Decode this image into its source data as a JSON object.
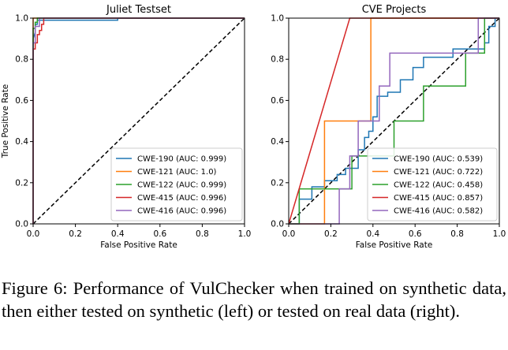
{
  "chart_data": [
    {
      "type": "line",
      "title": "Juliet Testset",
      "xlabel": "False Positive Rate",
      "ylabel": "True Positive Rate",
      "xlim": [
        0,
        1
      ],
      "ylim": [
        0,
        1
      ],
      "xticks": [
        "0.0",
        "0.2",
        "0.4",
        "0.6",
        "0.8",
        "1.0"
      ],
      "yticks": [
        "0.0",
        "0.2",
        "0.4",
        "0.6",
        "0.8",
        "1.0"
      ],
      "legend_position": "lower-right",
      "grid": false,
      "diagonal": true,
      "series": [
        {
          "name": "CWE-190 (AUC: 0.999)",
          "color": "#1f77b4",
          "x": [
            0,
            0,
            0.01,
            0.01,
            0.02,
            0.02,
            0.4,
            0.4,
            1.0
          ],
          "y": [
            0,
            0.9,
            0.93,
            0.97,
            0.97,
            0.99,
            0.99,
            1.0,
            1.0
          ]
        },
        {
          "name": "CWE-121 (AUC: 1.0)",
          "color": "#ff7f0e",
          "x": [
            0,
            0,
            1.0
          ],
          "y": [
            0,
            1.0,
            1.0
          ]
        },
        {
          "name": "CWE-122 (AUC: 0.999)",
          "color": "#2ca02c",
          "x": [
            0,
            0,
            0.01,
            0.01,
            0.02,
            0.02,
            1.0
          ],
          "y": [
            0,
            0.95,
            0.95,
            0.98,
            0.98,
            1.0,
            1.0
          ]
        },
        {
          "name": "CWE-415 (AUC: 0.996)",
          "color": "#d62728",
          "x": [
            0,
            0,
            0.01,
            0.01,
            0.02,
            0.02,
            0.03,
            0.03,
            0.04,
            0.04,
            0.05,
            0.05,
            1.0
          ],
          "y": [
            0,
            0.85,
            0.85,
            0.88,
            0.88,
            0.92,
            0.92,
            0.94,
            0.94,
            0.97,
            0.97,
            1.0,
            1.0
          ]
        },
        {
          "name": "CWE-416 (AUC: 0.996)",
          "color": "#9467bd",
          "x": [
            0,
            0,
            0.01,
            0.01,
            0.03,
            0.03,
            1.0
          ],
          "y": [
            0,
            0.88,
            0.88,
            0.96,
            0.96,
            1.0,
            1.0
          ]
        }
      ]
    },
    {
      "type": "line",
      "title": "CVE Projects",
      "xlabel": "False Positive Rate",
      "ylabel": "",
      "xlim": [
        0,
        1
      ],
      "ylim": [
        0,
        1
      ],
      "xticks": [
        "0.0",
        "0.2",
        "0.4",
        "0.6",
        "0.8",
        "1.0"
      ],
      "yticks": [
        "0.0",
        "0.2",
        "0.4",
        "0.6",
        "0.8",
        "1.0"
      ],
      "legend_position": "lower-right",
      "grid": false,
      "diagonal": true,
      "series": [
        {
          "name": "CWE-190 (AUC: 0.539)",
          "color": "#1f77b4",
          "x": [
            0,
            0.05,
            0.05,
            0.11,
            0.11,
            0.17,
            0.17,
            0.23,
            0.23,
            0.27,
            0.27,
            0.33,
            0.33,
            0.36,
            0.36,
            0.38,
            0.38,
            0.4,
            0.4,
            0.42,
            0.42,
            0.47,
            0.47,
            0.53,
            0.53,
            0.59,
            0.59,
            0.64,
            0.64,
            0.78,
            0.78,
            0.93,
            0.93,
            0.95,
            0.95,
            0.98,
            0.98,
            1.0
          ],
          "y": [
            0,
            0,
            0.12,
            0.12,
            0.18,
            0.18,
            0.21,
            0.21,
            0.24,
            0.24,
            0.27,
            0.27,
            0.36,
            0.36,
            0.42,
            0.42,
            0.45,
            0.45,
            0.52,
            0.52,
            0.62,
            0.62,
            0.64,
            0.64,
            0.7,
            0.7,
            0.76,
            0.76,
            0.81,
            0.81,
            0.85,
            0.85,
            0.88,
            0.88,
            0.96,
            0.96,
            1.0,
            1.0
          ]
        },
        {
          "name": "CWE-121 (AUC: 0.722)",
          "color": "#ff7f0e",
          "x": [
            0,
            0.17,
            0.17,
            0.39,
            0.39,
            1.0
          ],
          "y": [
            0,
            0,
            0.5,
            0.5,
            1.0,
            1.0
          ]
        },
        {
          "name": "CWE-122 (AUC: 0.458)",
          "color": "#2ca02c",
          "x": [
            0,
            0.05,
            0.05,
            0.3,
            0.3,
            0.5,
            0.5,
            0.64,
            0.64,
            0.84,
            0.84,
            0.93,
            0.93,
            1.0
          ],
          "y": [
            0,
            0,
            0.17,
            0.17,
            0.33,
            0.33,
            0.5,
            0.5,
            0.67,
            0.67,
            0.83,
            0.83,
            1.0,
            1.0
          ]
        },
        {
          "name": "CWE-415 (AUC: 0.857)",
          "color": "#d62728",
          "x": [
            0,
            0.29,
            1.0
          ],
          "y": [
            0,
            1.0,
            1.0
          ]
        },
        {
          "name": "CWE-416 (AUC: 0.582)",
          "color": "#9467bd",
          "x": [
            0,
            0.24,
            0.24,
            0.29,
            0.29,
            0.33,
            0.33,
            0.43,
            0.43,
            0.48,
            0.48,
            0.9,
            0.9,
            1.0
          ],
          "y": [
            0,
            0,
            0.17,
            0.17,
            0.33,
            0.33,
            0.5,
            0.5,
            0.67,
            0.67,
            0.83,
            0.83,
            1.0,
            1.0
          ]
        }
      ]
    }
  ],
  "caption": "Figure 6: Performance of VulChecker when trained on synthetic data, then either tested on synthetic (left) or tested on real data (right)."
}
